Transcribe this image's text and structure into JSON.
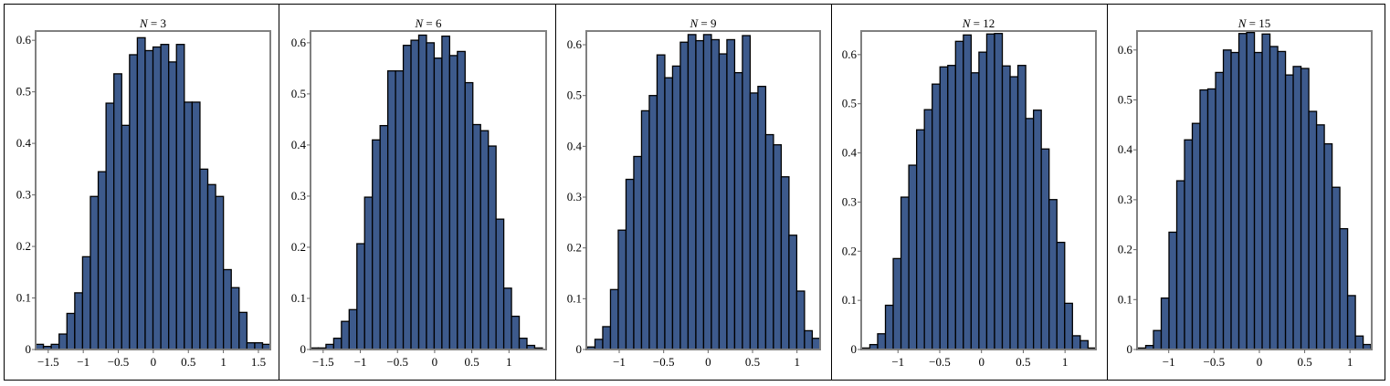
{
  "chart_data": [
    {
      "type": "bar",
      "title_var": "N",
      "title_eq": " = 3",
      "xlim": [
        -1.68,
        1.67
      ],
      "ylim": [
        0,
        0.618
      ],
      "bin_start": -1.68,
      "bin_width": 0.1117,
      "values": [
        0.01,
        0.006,
        0.01,
        0.03,
        0.07,
        0.11,
        0.18,
        0.297,
        0.345,
        0.478,
        0.535,
        0.435,
        0.572,
        0.605,
        0.58,
        0.587,
        0.592,
        0.558,
        0.592,
        0.48,
        0.48,
        0.35,
        0.32,
        0.297,
        0.155,
        0.12,
        0.072,
        0.013,
        0.013,
        0.01
      ],
      "xticks": [
        "-1.5",
        "-1",
        "-0.5",
        "0",
        "0.5",
        "1",
        "1.5"
      ],
      "xtick_values": [
        -1.5,
        -1,
        -0.5,
        0,
        0.5,
        1,
        1.5
      ],
      "yticks": [
        "0",
        "0.1",
        "0.2",
        "0.3",
        "0.4",
        "0.5",
        "0.6"
      ],
      "ytick_values": [
        0,
        0.1,
        0.2,
        0.3,
        0.4,
        0.5,
        0.6
      ],
      "xlabel": "",
      "ylabel": "",
      "grid": false
    },
    {
      "type": "bar",
      "title_var": "N",
      "title_eq": " = 6",
      "xlim": [
        -1.67,
        1.5
      ],
      "ylim": [
        0,
        0.623
      ],
      "bin_start": -1.67,
      "bin_width": 0.104,
      "values": [
        0.003,
        0.003,
        0.01,
        0.022,
        0.055,
        0.078,
        0.207,
        0.298,
        0.41,
        0.438,
        0.545,
        0.545,
        0.595,
        0.605,
        0.615,
        0.6,
        0.57,
        0.613,
        0.575,
        0.583,
        0.522,
        0.44,
        0.428,
        0.398,
        0.255,
        0.12,
        0.065,
        0.022,
        0.008,
        0.003
      ],
      "xticks": [
        "-1.5",
        "-1",
        "-0.5",
        "0",
        "0.5",
        "1"
      ],
      "xtick_values": [
        -1.5,
        -1,
        -0.5,
        0,
        0.5,
        1
      ],
      "yticks": [
        "0",
        "0.1",
        "0.2",
        "0.3",
        "0.4",
        "0.5",
        "0.6"
      ],
      "ytick_values": [
        0,
        0.1,
        0.2,
        0.3,
        0.4,
        0.5,
        0.6
      ],
      "xlabel": "",
      "ylabel": "",
      "grid": false
    },
    {
      "type": "bar",
      "title_var": "N",
      "title_eq": " = 9",
      "xlim": [
        -1.37,
        1.26
      ],
      "ylim": [
        0,
        0.627
      ],
      "bin_start": -1.36,
      "bin_width": 0.0873,
      "values": [
        0.005,
        0.02,
        0.045,
        0.118,
        0.235,
        0.335,
        0.38,
        0.47,
        0.5,
        0.58,
        0.535,
        0.558,
        0.605,
        0.62,
        0.608,
        0.62,
        0.61,
        0.582,
        0.61,
        0.545,
        0.618,
        0.505,
        0.518,
        0.423,
        0.403,
        0.34,
        0.225,
        0.115,
        0.037,
        0.022
      ],
      "xticks": [
        "-1",
        "-0.5",
        "0",
        "0.5",
        "1"
      ],
      "xtick_values": [
        -1,
        -0.5,
        0,
        0.5,
        1
      ],
      "yticks": [
        "0",
        "0.1",
        "0.2",
        "0.3",
        "0.4",
        "0.5",
        "0.6"
      ],
      "ytick_values": [
        0,
        0.1,
        0.2,
        0.3,
        0.4,
        0.5,
        0.6
      ],
      "xlabel": "",
      "ylabel": "",
      "grid": false
    },
    {
      "type": "bar",
      "title_var": "N",
      "title_eq": " = 12",
      "xlim": [
        -1.44,
        1.37
      ],
      "ylim": [
        0,
        0.648
      ],
      "bin_start": -1.43,
      "bin_width": 0.0933,
      "values": [
        0.003,
        0.01,
        0.032,
        0.09,
        0.185,
        0.31,
        0.375,
        0.447,
        0.488,
        0.54,
        0.575,
        0.578,
        0.627,
        0.64,
        0.563,
        0.605,
        0.642,
        0.643,
        0.577,
        0.555,
        0.578,
        0.47,
        0.487,
        0.408,
        0.305,
        0.218,
        0.094,
        0.028,
        0.018,
        0.003
      ],
      "xticks": [
        "-1",
        "-0.5",
        "0",
        "0.5",
        "1"
      ],
      "xtick_values": [
        -1,
        -0.5,
        0,
        0.5,
        1
      ],
      "yticks": [
        "0",
        "0.1",
        "0.2",
        "0.3",
        "0.4",
        "0.5",
        "0.6"
      ],
      "ytick_values": [
        0,
        0.1,
        0.2,
        0.3,
        0.4,
        0.5,
        0.6
      ],
      "xlabel": "",
      "ylabel": "",
      "grid": false
    },
    {
      "type": "bar",
      "title_var": "N",
      "title_eq": " = 15",
      "xlim": [
        -1.35,
        1.24
      ],
      "ylim": [
        0,
        0.638
      ],
      "bin_start": -1.34,
      "bin_width": 0.0857,
      "values": [
        0.003,
        0.008,
        0.038,
        0.103,
        0.235,
        0.338,
        0.42,
        0.453,
        0.52,
        0.522,
        0.555,
        0.6,
        0.595,
        0.633,
        0.635,
        0.595,
        0.632,
        0.607,
        0.597,
        0.55,
        0.567,
        0.563,
        0.477,
        0.45,
        0.412,
        0.325,
        0.242,
        0.108,
        0.027,
        0.01
      ],
      "xticks": [
        "-1",
        "-0.5",
        "0",
        "0.5",
        "1"
      ],
      "xtick_values": [
        -1,
        -0.5,
        0,
        0.5,
        1
      ],
      "yticks": [
        "0",
        "0.1",
        "0.2",
        "0.3",
        "0.4",
        "0.5",
        "0.6"
      ],
      "ytick_values": [
        0,
        0.1,
        0.2,
        0.3,
        0.4,
        0.5,
        0.6
      ],
      "xlabel": "",
      "ylabel": "",
      "grid": false
    }
  ],
  "colors": {
    "bar_fill": "#3d5a8c",
    "bar_stroke": "#000000",
    "frame": "#808080"
  }
}
